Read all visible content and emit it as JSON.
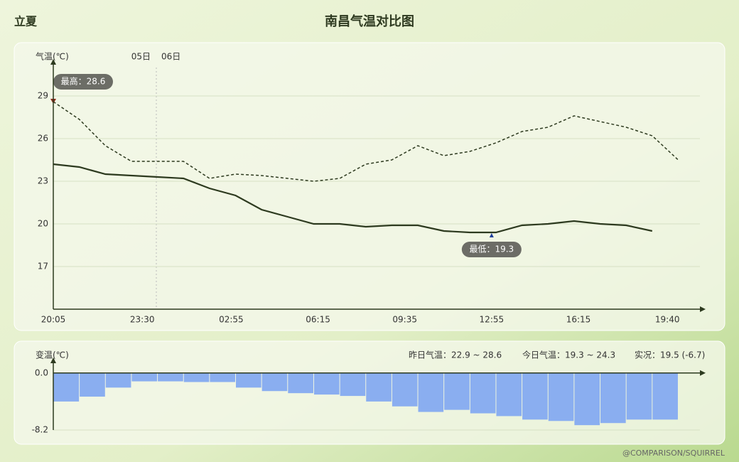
{
  "header": {
    "left": "立夏",
    "title": "南昌气温对比图"
  },
  "watermark": "@COMPARISON/SQUIRREL",
  "chart_data": [
    {
      "type": "line",
      "y_label": "气温(℃)",
      "date_labels": [
        "05日",
        "06日"
      ],
      "xlim": [
        0,
        1490
      ],
      "ylim": [
        14,
        31
      ],
      "xticks": [
        {
          "value": 0,
          "label": "20:05"
        },
        {
          "value": 205,
          "label": "23:30"
        },
        {
          "value": 410,
          "label": "02:55"
        },
        {
          "value": 610,
          "label": "06:15"
        },
        {
          "value": 810,
          "label": "09:35"
        },
        {
          "value": 1010,
          "label": "12:55"
        },
        {
          "value": 1210,
          "label": "16:15"
        },
        {
          "value": 1415,
          "label": "19:40"
        }
      ],
      "yticks": [
        17,
        20,
        23,
        26,
        29
      ],
      "grid": true,
      "series": [
        {
          "style": "dashed",
          "color": "#2d3a1f",
          "x": [
            0,
            60,
            120,
            180,
            240,
            300,
            360,
            420,
            480,
            540,
            600,
            660,
            720,
            780,
            840,
            900,
            960,
            1020,
            1080,
            1140,
            1200,
            1260,
            1320,
            1380,
            1440
          ],
          "values": [
            28.6,
            27.35,
            25.5,
            24.4,
            24.4,
            24.4,
            23.2,
            23.5,
            23.4,
            23.2,
            23.0,
            23.2,
            24.2,
            24.5,
            25.5,
            24.8,
            25.1,
            25.7,
            26.5,
            26.8,
            27.6,
            27.2,
            26.8,
            26.2,
            24.5
          ]
        },
        {
          "style": "solid",
          "color": "#2d3a1f",
          "x": [
            0,
            60,
            120,
            180,
            240,
            300,
            360,
            420,
            480,
            540,
            600,
            660,
            720,
            780,
            840,
            900,
            960,
            1020,
            1080,
            1140,
            1200,
            1260,
            1320,
            1380
          ],
          "values": [
            24.2,
            24.0,
            23.5,
            23.4,
            23.3,
            23.2,
            22.5,
            22.0,
            21.0,
            20.5,
            20.0,
            20.0,
            19.8,
            19.9,
            19.9,
            19.5,
            19.4,
            19.4,
            19.9,
            20.0,
            20.2,
            20.0,
            19.9,
            19.5
          ]
        }
      ],
      "annotations": [
        {
          "text": "最高：28.6",
          "x": 0,
          "y": 28.6,
          "color": "#8b2a1a"
        },
        {
          "text": "最低：19.3",
          "x": 1010,
          "y": 19.3,
          "color": "#1f3f9a"
        }
      ]
    },
    {
      "type": "bar",
      "y_label": "变温(℃)",
      "summary": [
        "昨日气温：22.9 ~ 28.6",
        "今日气温：19.3 ~ 24.3",
        "实况：19.5 (-6.7)"
      ],
      "xlim": [
        0,
        1490
      ],
      "ylim": [
        -8.2,
        1.0
      ],
      "yticks": [
        {
          "value": 0,
          "label": "0.0"
        },
        {
          "value": -8.2,
          "label": "-8.2"
        }
      ],
      "color": "#8aaef0",
      "x": [
        0,
        60,
        120,
        180,
        240,
        300,
        360,
        420,
        480,
        540,
        600,
        660,
        720,
        780,
        840,
        900,
        960,
        1020,
        1080,
        1140,
        1200,
        1260,
        1320,
        1380
      ],
      "values": [
        -4.1,
        -3.4,
        -2.1,
        -1.2,
        -1.2,
        -1.3,
        -1.3,
        -2.1,
        -2.6,
        -2.9,
        -3.1,
        -3.3,
        -4.1,
        -4.8,
        -5.6,
        -5.3,
        -5.8,
        -6.2,
        -6.7,
        -6.9,
        -7.5,
        -7.2,
        -6.7,
        -6.7
      ]
    }
  ]
}
